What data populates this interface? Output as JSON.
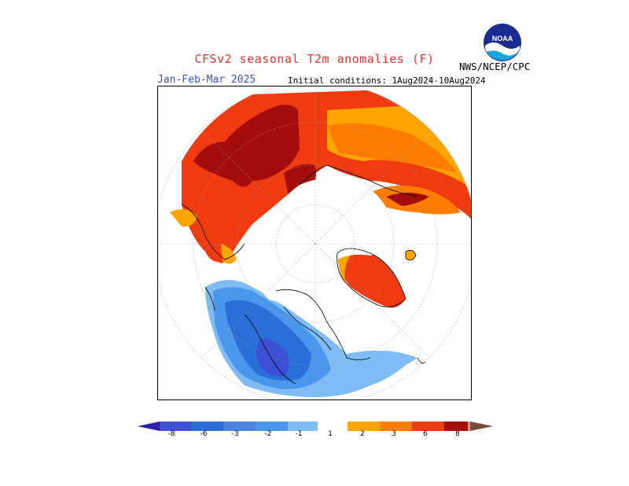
{
  "header": {
    "title": "CFSv2 seasonal T2m anomalies (F)",
    "period": "Jan-Feb-Mar 2025",
    "initial_conditions": "Initial conditions: 1Aug2024-10Aug2024",
    "agency": "NWS/NCEP/CPC",
    "logo_text": "NOAA"
  },
  "colors": {
    "deep_blue": "#2c1fa8",
    "blue_6": "#3d4fd4",
    "blue_3": "#2a6fd8",
    "blue_2": "#4a96ec",
    "blue_1": "#7fbcf6",
    "white": "#ffffff",
    "orange_1": "#fea500",
    "orange_2": "#fe7d00",
    "red_3": "#f03a10",
    "red_6": "#a50d0d",
    "pink_8": "#c89c8c",
    "brown_8plus": "#7a4a3a"
  },
  "colorbar": {
    "labels": [
      "-8",
      "-6",
      "-3",
      "-2",
      "-1",
      "1",
      "2",
      "3",
      "6",
      "8"
    ]
  }
}
